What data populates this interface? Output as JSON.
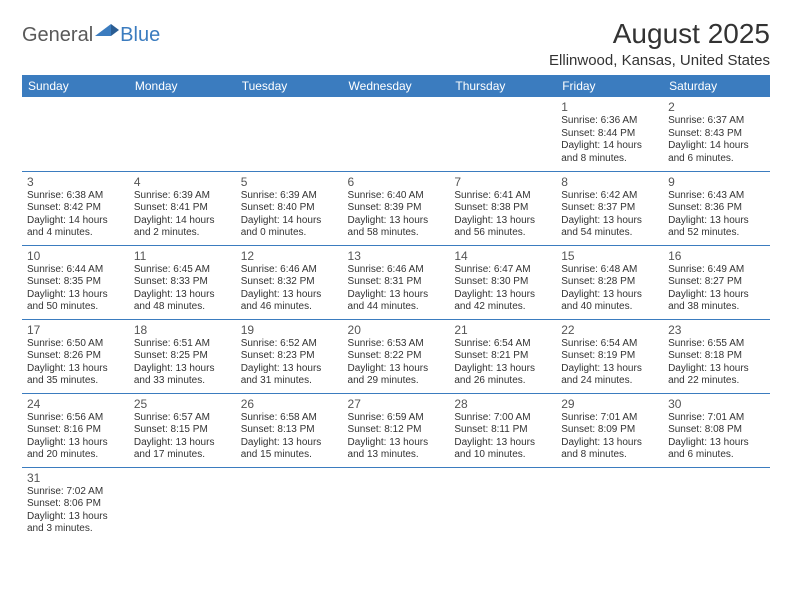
{
  "logo": {
    "part1": "General",
    "part2": "Blue"
  },
  "title": "August 2025",
  "location": "Ellinwood, Kansas, United States",
  "colors": {
    "header_bg": "#3b7cbf",
    "text": "#333333",
    "logo_gray": "#595959",
    "rule": "#3b7cbf"
  },
  "weekdays": [
    "Sunday",
    "Monday",
    "Tuesday",
    "Wednesday",
    "Thursday",
    "Friday",
    "Saturday"
  ],
  "weeks": [
    [
      null,
      null,
      null,
      null,
      null,
      {
        "n": "1",
        "sr": "Sunrise: 6:36 AM",
        "ss": "Sunset: 8:44 PM",
        "d1": "Daylight: 14 hours",
        "d2": "and 8 minutes."
      },
      {
        "n": "2",
        "sr": "Sunrise: 6:37 AM",
        "ss": "Sunset: 8:43 PM",
        "d1": "Daylight: 14 hours",
        "d2": "and 6 minutes."
      }
    ],
    [
      {
        "n": "3",
        "sr": "Sunrise: 6:38 AM",
        "ss": "Sunset: 8:42 PM",
        "d1": "Daylight: 14 hours",
        "d2": "and 4 minutes."
      },
      {
        "n": "4",
        "sr": "Sunrise: 6:39 AM",
        "ss": "Sunset: 8:41 PM",
        "d1": "Daylight: 14 hours",
        "d2": "and 2 minutes."
      },
      {
        "n": "5",
        "sr": "Sunrise: 6:39 AM",
        "ss": "Sunset: 8:40 PM",
        "d1": "Daylight: 14 hours",
        "d2": "and 0 minutes."
      },
      {
        "n": "6",
        "sr": "Sunrise: 6:40 AM",
        "ss": "Sunset: 8:39 PM",
        "d1": "Daylight: 13 hours",
        "d2": "and 58 minutes."
      },
      {
        "n": "7",
        "sr": "Sunrise: 6:41 AM",
        "ss": "Sunset: 8:38 PM",
        "d1": "Daylight: 13 hours",
        "d2": "and 56 minutes."
      },
      {
        "n": "8",
        "sr": "Sunrise: 6:42 AM",
        "ss": "Sunset: 8:37 PM",
        "d1": "Daylight: 13 hours",
        "d2": "and 54 minutes."
      },
      {
        "n": "9",
        "sr": "Sunrise: 6:43 AM",
        "ss": "Sunset: 8:36 PM",
        "d1": "Daylight: 13 hours",
        "d2": "and 52 minutes."
      }
    ],
    [
      {
        "n": "10",
        "sr": "Sunrise: 6:44 AM",
        "ss": "Sunset: 8:35 PM",
        "d1": "Daylight: 13 hours",
        "d2": "and 50 minutes."
      },
      {
        "n": "11",
        "sr": "Sunrise: 6:45 AM",
        "ss": "Sunset: 8:33 PM",
        "d1": "Daylight: 13 hours",
        "d2": "and 48 minutes."
      },
      {
        "n": "12",
        "sr": "Sunrise: 6:46 AM",
        "ss": "Sunset: 8:32 PM",
        "d1": "Daylight: 13 hours",
        "d2": "and 46 minutes."
      },
      {
        "n": "13",
        "sr": "Sunrise: 6:46 AM",
        "ss": "Sunset: 8:31 PM",
        "d1": "Daylight: 13 hours",
        "d2": "and 44 minutes."
      },
      {
        "n": "14",
        "sr": "Sunrise: 6:47 AM",
        "ss": "Sunset: 8:30 PM",
        "d1": "Daylight: 13 hours",
        "d2": "and 42 minutes."
      },
      {
        "n": "15",
        "sr": "Sunrise: 6:48 AM",
        "ss": "Sunset: 8:28 PM",
        "d1": "Daylight: 13 hours",
        "d2": "and 40 minutes."
      },
      {
        "n": "16",
        "sr": "Sunrise: 6:49 AM",
        "ss": "Sunset: 8:27 PM",
        "d1": "Daylight: 13 hours",
        "d2": "and 38 minutes."
      }
    ],
    [
      {
        "n": "17",
        "sr": "Sunrise: 6:50 AM",
        "ss": "Sunset: 8:26 PM",
        "d1": "Daylight: 13 hours",
        "d2": "and 35 minutes."
      },
      {
        "n": "18",
        "sr": "Sunrise: 6:51 AM",
        "ss": "Sunset: 8:25 PM",
        "d1": "Daylight: 13 hours",
        "d2": "and 33 minutes."
      },
      {
        "n": "19",
        "sr": "Sunrise: 6:52 AM",
        "ss": "Sunset: 8:23 PM",
        "d1": "Daylight: 13 hours",
        "d2": "and 31 minutes."
      },
      {
        "n": "20",
        "sr": "Sunrise: 6:53 AM",
        "ss": "Sunset: 8:22 PM",
        "d1": "Daylight: 13 hours",
        "d2": "and 29 minutes."
      },
      {
        "n": "21",
        "sr": "Sunrise: 6:54 AM",
        "ss": "Sunset: 8:21 PM",
        "d1": "Daylight: 13 hours",
        "d2": "and 26 minutes."
      },
      {
        "n": "22",
        "sr": "Sunrise: 6:54 AM",
        "ss": "Sunset: 8:19 PM",
        "d1": "Daylight: 13 hours",
        "d2": "and 24 minutes."
      },
      {
        "n": "23",
        "sr": "Sunrise: 6:55 AM",
        "ss": "Sunset: 8:18 PM",
        "d1": "Daylight: 13 hours",
        "d2": "and 22 minutes."
      }
    ],
    [
      {
        "n": "24",
        "sr": "Sunrise: 6:56 AM",
        "ss": "Sunset: 8:16 PM",
        "d1": "Daylight: 13 hours",
        "d2": "and 20 minutes."
      },
      {
        "n": "25",
        "sr": "Sunrise: 6:57 AM",
        "ss": "Sunset: 8:15 PM",
        "d1": "Daylight: 13 hours",
        "d2": "and 17 minutes."
      },
      {
        "n": "26",
        "sr": "Sunrise: 6:58 AM",
        "ss": "Sunset: 8:13 PM",
        "d1": "Daylight: 13 hours",
        "d2": "and 15 minutes."
      },
      {
        "n": "27",
        "sr": "Sunrise: 6:59 AM",
        "ss": "Sunset: 8:12 PM",
        "d1": "Daylight: 13 hours",
        "d2": "and 13 minutes."
      },
      {
        "n": "28",
        "sr": "Sunrise: 7:00 AM",
        "ss": "Sunset: 8:11 PM",
        "d1": "Daylight: 13 hours",
        "d2": "and 10 minutes."
      },
      {
        "n": "29",
        "sr": "Sunrise: 7:01 AM",
        "ss": "Sunset: 8:09 PM",
        "d1": "Daylight: 13 hours",
        "d2": "and 8 minutes."
      },
      {
        "n": "30",
        "sr": "Sunrise: 7:01 AM",
        "ss": "Sunset: 8:08 PM",
        "d1": "Daylight: 13 hours",
        "d2": "and 6 minutes."
      }
    ],
    [
      {
        "n": "31",
        "sr": "Sunrise: 7:02 AM",
        "ss": "Sunset: 8:06 PM",
        "d1": "Daylight: 13 hours",
        "d2": "and 3 minutes."
      },
      null,
      null,
      null,
      null,
      null,
      null
    ]
  ]
}
